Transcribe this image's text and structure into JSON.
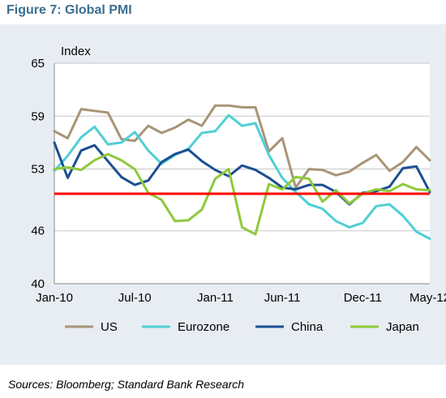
{
  "figure": {
    "title": "Figure 7: Global PMI",
    "source": "Sources: Bloomberg; Standard Bank Research"
  },
  "chart_data": {
    "type": "line",
    "title": "Figure 7: Global PMI",
    "ylabel": "Index",
    "xlabel": "",
    "ylim": [
      40,
      65
    ],
    "yticks": [
      40,
      46,
      53,
      59,
      65
    ],
    "x": [
      "Jan-10",
      "Feb-10",
      "Mar-10",
      "Apr-10",
      "May-10",
      "Jun-10",
      "Jul-10",
      "Aug-10",
      "Sep-10",
      "Oct-10",
      "Nov-10",
      "Dec-10",
      "Jan-11",
      "Feb-11",
      "Mar-11",
      "Apr-11",
      "May-11",
      "Jun-11",
      "Jul-11",
      "Aug-11",
      "Sep-11",
      "Oct-11",
      "Nov-11",
      "Dec-11",
      "Jan-12",
      "Feb-12",
      "Mar-12",
      "Apr-12",
      "May-12"
    ],
    "xtick_labels": [
      "Jan-10",
      "Jul-10",
      "Jan-11",
      "Jun-11",
      "Dec-11",
      "May-12"
    ],
    "grid": true,
    "legend": "bottom",
    "reference_line": {
      "value": 50.2,
      "color": "#ff0000"
    },
    "series": [
      {
        "name": "US",
        "color": "#a89477",
        "values": [
          57.3,
          56.5,
          59.8,
          59.6,
          59.4,
          56.4,
          56.2,
          57.9,
          57.1,
          57.7,
          58.6,
          57.9,
          60.2,
          60.2,
          60.0,
          60.0,
          55.0,
          56.5,
          50.9,
          53.0,
          52.9,
          52.3,
          52.7,
          53.7,
          54.6,
          52.8,
          53.8,
          55.5,
          54.0
        ]
      },
      {
        "name": "Eurozone",
        "color": "#4fcfd6",
        "values": [
          52.8,
          54.5,
          56.6,
          57.8,
          55.8,
          56.0,
          57.2,
          55.1,
          53.6,
          54.6,
          55.3,
          57.1,
          57.3,
          59.1,
          57.9,
          58.2,
          54.6,
          52.0,
          50.4,
          49.0,
          48.5,
          47.1,
          46.4,
          46.9,
          48.8,
          49.0,
          47.7,
          45.9,
          45.1
        ]
      },
      {
        "name": "China",
        "color": "#1b4f92",
        "values": [
          56.0,
          52.0,
          55.1,
          55.7,
          53.9,
          52.1,
          51.2,
          51.7,
          53.8,
          54.7,
          55.2,
          53.9,
          52.9,
          52.2,
          53.4,
          52.9,
          52.0,
          50.9,
          50.7,
          51.2,
          51.2,
          50.4,
          49.0,
          50.3,
          50.5,
          51.0,
          53.1,
          53.3,
          50.4
        ]
      },
      {
        "name": "Japan",
        "color": "#8ec93a",
        "values": [
          53.0,
          53.2,
          52.9,
          54.0,
          54.7,
          54.0,
          53.0,
          50.3,
          49.5,
          47.1,
          47.2,
          48.4,
          51.9,
          53.0,
          46.4,
          45.6,
          51.3,
          50.7,
          52.1,
          51.9,
          49.3,
          50.6,
          49.1,
          50.2,
          50.7,
          50.5,
          51.3,
          50.7,
          50.6
        ]
      }
    ]
  }
}
